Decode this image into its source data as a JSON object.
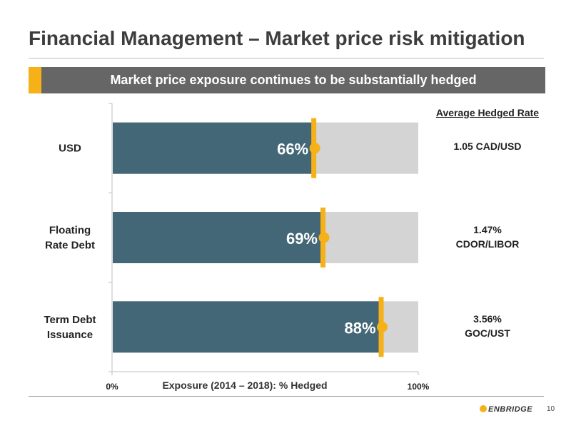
{
  "slide": {
    "title": "Financial Management – Market price risk mitigation",
    "banner": "Market price exposure continues to be substantially hedged",
    "page_number": "10",
    "logo_text": "ENBRIDGE"
  },
  "side_panel": {
    "header": "Average Hedged Rate",
    "rates": [
      {
        "line1": "1.05 CAD/USD",
        "line2": ""
      },
      {
        "line1": "1.47%",
        "line2": "CDOR/LIBOR"
      },
      {
        "line1": "3.56%",
        "line2": "GOC/UST"
      }
    ]
  },
  "chart_data": {
    "type": "bar",
    "orientation": "horizontal",
    "categories": [
      "USD",
      "Floating Rate Debt",
      "Term Debt Issuance"
    ],
    "category_lines": [
      [
        "USD"
      ],
      [
        "Floating",
        "Rate Debt"
      ],
      [
        "Term Debt",
        "Issuance"
      ]
    ],
    "values": [
      66,
      69,
      88
    ],
    "value_labels": [
      "66%",
      "69%",
      "88%"
    ],
    "total": 100,
    "xlabel": "Exposure (2014 – 2018): % Hedged",
    "xlim": [
      0,
      100
    ],
    "x_tick_labels": [
      "0%",
      "100%"
    ],
    "colors": {
      "hedged": "#436776",
      "unhedged": "#d4d4d4",
      "marker": "#f5b117",
      "label": "#ffffff"
    }
  }
}
